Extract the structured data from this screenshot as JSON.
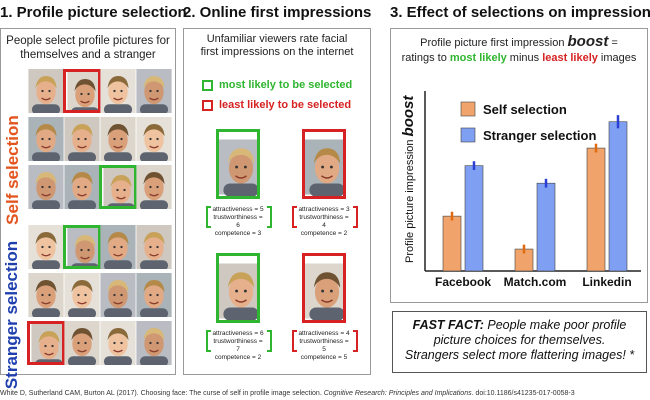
{
  "panel1": {
    "title": "1. Profile picture selection",
    "subtitle_line1": "People select profile pictures for",
    "subtitle_line2": "themselves and a stranger",
    "label_self": "Self selection",
    "label_stranger": "Stranger selection"
  },
  "panel2": {
    "title": "2. Online first impressions",
    "subtitle_line1": "Unfamiliar viewers rate facial",
    "subtitle_line2": "first impressions on the internet",
    "legend_green": "most likely to be selected",
    "legend_red": "least likely to be selected",
    "ratings": [
      {
        "attractiveness": "attractiveness = 5",
        "trustworthiness": "trustworthiness = 6",
        "competence": "competence = 3"
      },
      {
        "attractiveness": "attractiveness = 3",
        "trustworthiness": "trustworthiness = 4",
        "competence": "competence = 2"
      },
      {
        "attractiveness": "attractiveness = 6",
        "trustworthiness": "trustworthiness = 7",
        "competence": "competence = 2"
      },
      {
        "attractiveness": "attractiveness = 4",
        "trustworthiness": "trustworthiness = 5",
        "competence": "competence = 5"
      }
    ]
  },
  "panel3": {
    "title": "3. Effect of selections on impressions",
    "sub_line1_a": "Profile picture first impression ",
    "sub_line1_b": "boost",
    "sub_line1_c": " =",
    "sub_line2_a": "ratings to ",
    "sub_line2_b": "most likely",
    "sub_line2_c": " minus ",
    "sub_line2_d": "least likely",
    "sub_line2_e": " images"
  },
  "colors": {
    "self": "#f0a36a",
    "stranger": "#7f9ff2",
    "green": "#2fb52f",
    "red": "#d62222",
    "errbar_self": "#e06a10",
    "errbar_stranger": "#2b3fd6"
  },
  "chart_data": {
    "type": "bar",
    "ylabel_a": "Profile picture impression ",
    "ylabel_b": "boost",
    "categories": [
      "Facebook",
      "Match.com",
      "Linkedin"
    ],
    "series": [
      {
        "name": "Self selection",
        "values": [
          0.25,
          0.1,
          0.56
        ]
      },
      {
        "name": "Stranger selection",
        "values": [
          0.48,
          0.4,
          0.68
        ]
      }
    ],
    "errors": [
      {
        "name": "Self selection",
        "values": [
          0.02,
          0.02,
          0.02
        ]
      },
      {
        "name": "Stranger selection",
        "values": [
          0.02,
          0.02,
          0.03
        ]
      }
    ],
    "ylim": [
      0,
      0.82
    ],
    "legend_position": "top-left"
  },
  "fast_fact": {
    "label": "FAST FACT:",
    "text_line1": " People make poor profile",
    "text_line2": "picture choices for themselves.",
    "text_line3": "Strangers select more flattering images! *"
  },
  "citation": {
    "plain": "White D, Sutherland CAM, Burton AL (2017). Choosing face: The curse of self in profile image selection. ",
    "italic": "Cognitive Research: Principles and Implications.",
    "doi": " doi:10.1186/s41235-017-0058-3"
  }
}
